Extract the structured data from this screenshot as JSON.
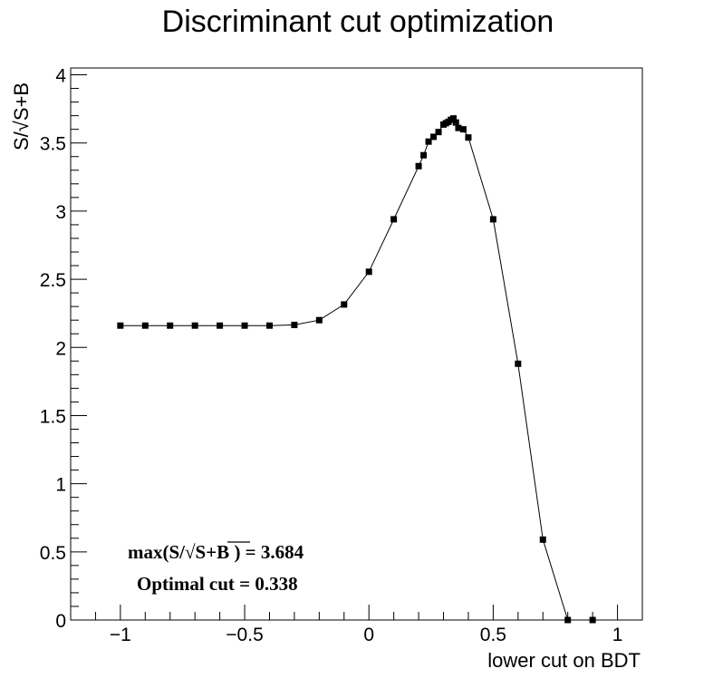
{
  "chart_data": {
    "type": "line",
    "title": "Discriminant cut optimization",
    "xlabel": "lower cut on BDT",
    "ylabel": "S/√S+B",
    "xlim": [
      -1.2,
      1.1
    ],
    "ylim": [
      0,
      4.05
    ],
    "x_ticks": [
      -1,
      -0.5,
      0,
      0.5,
      1
    ],
    "x_tick_labels": [
      "−1",
      "−0.5",
      "0",
      "0.5",
      "1"
    ],
    "y_ticks": [
      0,
      0.5,
      1,
      1.5,
      2,
      2.5,
      3,
      3.5,
      4
    ],
    "y_tick_labels": [
      "0",
      "0.5",
      "1",
      "1.5",
      "2",
      "2.5",
      "3",
      "3.5",
      "4"
    ],
    "grid": false,
    "series": [
      {
        "marker": "square",
        "color": "#000000",
        "x": [
          -1.0,
          -0.9,
          -0.8,
          -0.7,
          -0.6,
          -0.5,
          -0.4,
          -0.3,
          -0.2,
          -0.1,
          0.0,
          0.1,
          0.2,
          0.22,
          0.24,
          0.26,
          0.28,
          0.3,
          0.31,
          0.32,
          0.33,
          0.34,
          0.35,
          0.36,
          0.38,
          0.4,
          0.5,
          0.6,
          0.7,
          0.8,
          0.9
        ],
        "y": [
          2.16,
          2.16,
          2.16,
          2.16,
          2.16,
          2.16,
          2.16,
          2.165,
          2.2,
          2.315,
          2.555,
          2.94,
          3.33,
          3.41,
          3.51,
          3.545,
          3.58,
          3.635,
          3.645,
          3.655,
          3.67,
          3.68,
          3.65,
          3.61,
          3.6,
          3.54,
          2.94,
          1.88,
          0.59,
          0.0,
          0.0
        ]
      }
    ],
    "annotations": [
      {
        "prefix": "max(S/",
        "radicand": "S+B",
        "suffix": " ) =  3.684"
      },
      {
        "text": "Optimal cut =  0.338"
      }
    ]
  }
}
